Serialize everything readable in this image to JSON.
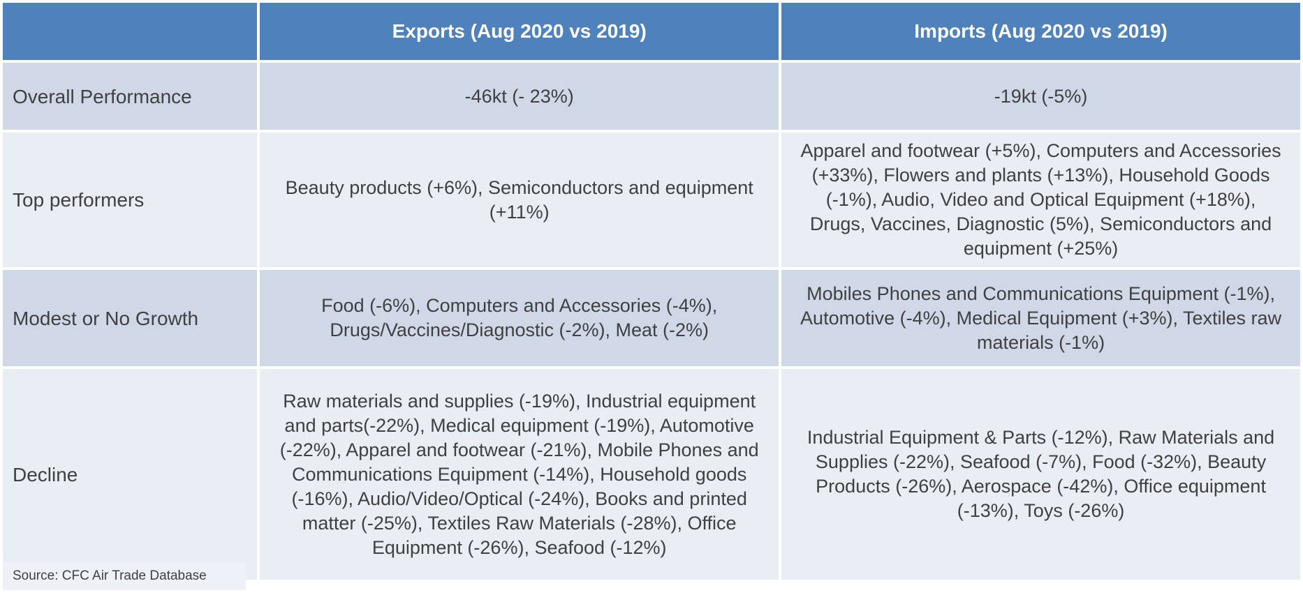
{
  "table": {
    "headers": {
      "corner": "",
      "exports": "Exports (Aug 2020 vs 2019)",
      "imports": "Imports (Aug 2020 vs 2019)"
    },
    "rows": [
      {
        "label": "Overall Performance",
        "exports": "-46kt (- 23%)",
        "imports": "-19kt (-5%)"
      },
      {
        "label": "Top performers",
        "exports": "Beauty products (+6%), Semiconductors and equipment (+11%)",
        "imports": "Apparel and footwear (+5%), Computers and Accessories (+33%), Flowers and plants (+13%), Household Goods (-1%), Audio, Video and Optical Equipment (+18%), Drugs, Vaccines, Diagnostic (5%), Semiconductors and equipment (+25%)"
      },
      {
        "label": "Modest or No Growth",
        "exports": "Food (-6%), Computers and Accessories (-4%), Drugs/Vaccines/Diagnostic (-2%), Meat (-2%)",
        "imports": "Mobiles Phones and Communications Equipment (-1%), Automotive (-4%), Medical Equipment (+3%), Textiles raw materials (-1%)"
      },
      {
        "label": "Decline",
        "exports": "Raw materials and supplies (-19%), Industrial equipment and parts(-22%), Medical equipment (-19%), Automotive (-22%), Apparel and footwear (-21%), Mobile Phones and Communications Equipment (-14%), Household goods (-16%), Audio/Video/Optical (-24%), Books and printed matter (-25%), Textiles Raw Materials (-28%), Office Equipment (-26%), Seafood (-12%)",
        "imports": "Industrial Equipment & Parts (-12%), Raw Materials and Supplies (-22%), Seafood (-7%), Food (-32%), Beauty Products (-26%), Aerospace (-42%), Office equipment (-13%), Toys (-26%)"
      }
    ]
  },
  "source": "Source: CFC Air Trade Database",
  "colors": {
    "header_bg": "#4f81bd",
    "row_dark_bg": "#d0d8e8",
    "row_light_bg": "#e9edf4",
    "text": "#404040"
  }
}
